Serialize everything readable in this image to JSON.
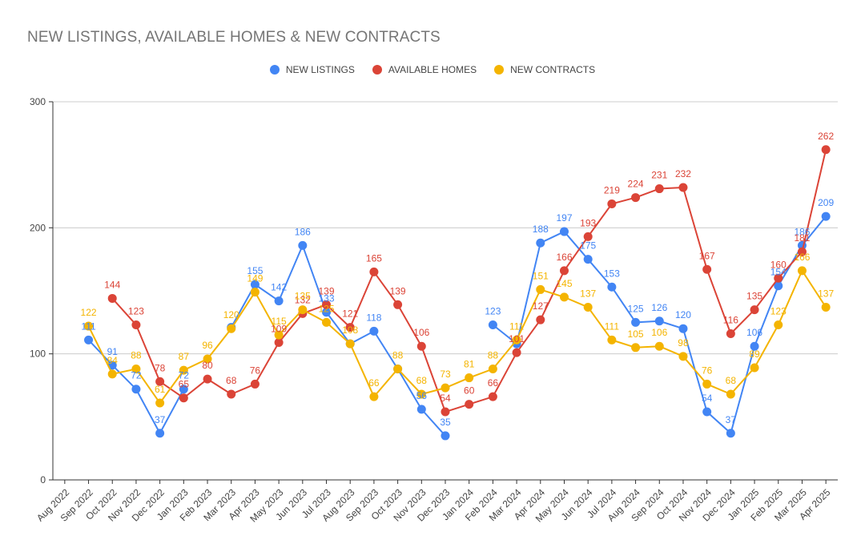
{
  "chart_data": {
    "type": "line",
    "title": "NEW LISTINGS, AVAILABLE HOMES & NEW CONTRACTS",
    "xlabel": "",
    "ylabel": "",
    "ylim": [
      0,
      300
    ],
    "yticks": [
      0,
      100,
      200,
      300
    ],
    "grid": true,
    "legend_position": "top",
    "categories": [
      "Aug 2022",
      "Sep 2022",
      "Oct 2022",
      "Nov 2022",
      "Dec 2022",
      "Jan 2023",
      "Feb 2023",
      "Mar 2023",
      "Apr 2023",
      "May 2023",
      "Jun 2023",
      "Jul 2023",
      "Aug 2023",
      "Sep 2023",
      "Oct 2023",
      "Nov 2023",
      "Dec 2023",
      "Jan 2024",
      "Feb 2024",
      "Mar 2024",
      "Apr 2024",
      "May 2024",
      "Jun 2024",
      "Jul 2024",
      "Aug 2024",
      "Sep 2024",
      "Oct 2024",
      "Nov 2024",
      "Dec 2024",
      "Jan 2025",
      "Feb 2025",
      "Mar 2025",
      "Apr 2025"
    ],
    "series": [
      {
        "name": "NEW LISTINGS",
        "color": "#4285f4",
        "values": [
          null,
          111,
          91,
          72,
          37,
          72,
          null,
          121,
          155,
          142,
          186,
          133,
          108,
          118,
          88,
          56,
          35,
          null,
          123,
          108,
          188,
          197,
          175,
          153,
          125,
          126,
          120,
          54,
          37,
          106,
          154,
          186,
          209
        ],
        "labels": [
          null,
          "111",
          "91",
          "72",
          "37",
          "72",
          null,
          null,
          "155",
          "142",
          "186",
          "133",
          null,
          "118",
          null,
          "56",
          "35",
          null,
          "123",
          null,
          "188",
          "197",
          "175",
          "153",
          "125",
          "126",
          "120",
          "54",
          "37",
          "106",
          "154",
          "186",
          "209"
        ]
      },
      {
        "name": "AVAILABLE HOMES",
        "color": "#db4437",
        "values": [
          null,
          null,
          144,
          123,
          78,
          65,
          80,
          68,
          76,
          109,
          132,
          139,
          121,
          165,
          139,
          106,
          54,
          60,
          66,
          101,
          127,
          166,
          193,
          219,
          224,
          231,
          232,
          167,
          116,
          135,
          160,
          181,
          262
        ],
        "labels": [
          null,
          null,
          "144",
          "123",
          "78",
          "65",
          "80",
          "68",
          "76",
          "109",
          "132",
          "139",
          "121",
          "165",
          "139",
          "106",
          "54",
          "60",
          "66",
          "101",
          "127",
          "166",
          "193",
          "219",
          "224",
          "231",
          "232",
          "167",
          "116",
          "135",
          "160",
          "181",
          "262"
        ]
      },
      {
        "name": "NEW CONTRACTS",
        "color": "#f4b400",
        "values": [
          null,
          122,
          84,
          88,
          61,
          87,
          96,
          120,
          149,
          115,
          135,
          125,
          108,
          66,
          88,
          68,
          73,
          81,
          88,
          111,
          151,
          145,
          137,
          111,
          105,
          106,
          98,
          76,
          68,
          89,
          123,
          166,
          137
        ],
        "labels": [
          null,
          "122",
          "84",
          "88",
          "61",
          "87",
          "96",
          "120",
          "149",
          "115",
          "135",
          "125",
          "108",
          "66",
          "88",
          "68",
          "73",
          "81",
          "88",
          "111",
          "151",
          "145",
          "137",
          "111",
          "105",
          "106",
          "98",
          "76",
          "68",
          "89",
          "123",
          "166",
          "137"
        ]
      }
    ]
  }
}
